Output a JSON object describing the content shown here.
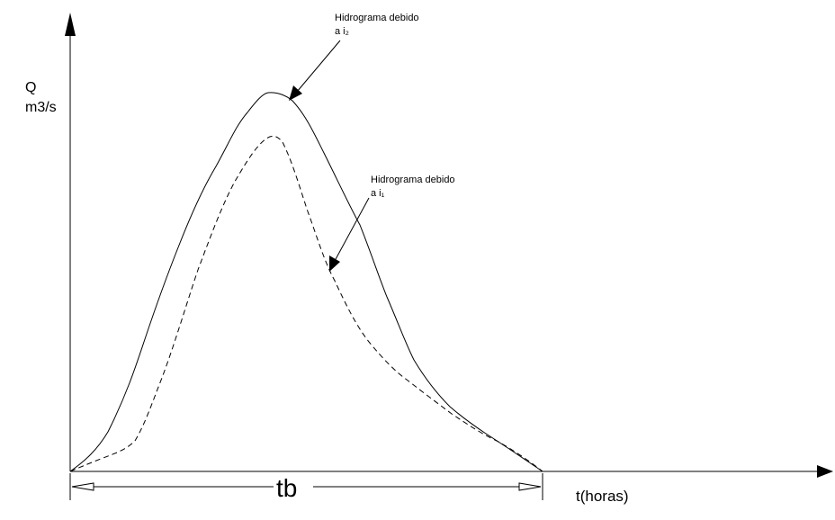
{
  "axes": {
    "y_label_1": "Q",
    "y_label_2": "m3/s",
    "x_label": "t(horas)",
    "base_label": "tb"
  },
  "annotations": [
    {
      "line1": "Hidrograma debido",
      "line2": "a i₂"
    },
    {
      "line1": "Hidrograma debido",
      "line2": "a i₁"
    }
  ]
}
